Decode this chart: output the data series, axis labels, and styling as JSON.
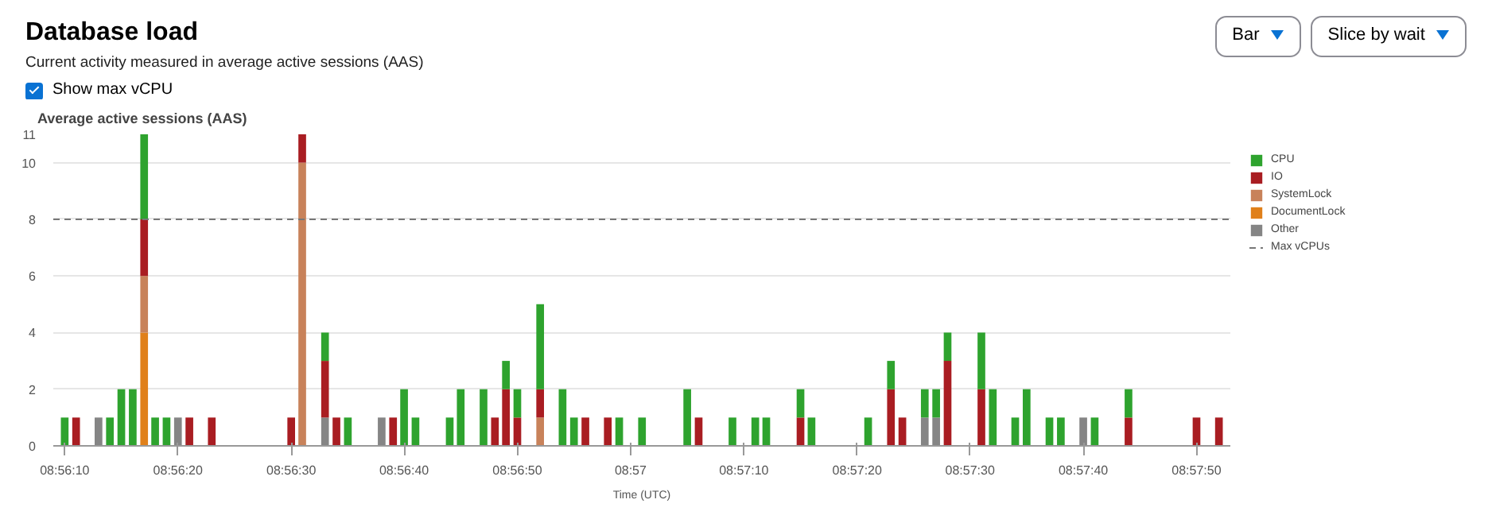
{
  "chart_data": {
    "type": "bar",
    "title": "Database load",
    "subtitle": "Current activity measured in average active sessions (AAS)",
    "annotations": [
      "Bar",
      "Slice by wait",
      "Show max vCPU"
    ],
    "ylabel": "Average active sessions (AAS)",
    "xlabel": "Time (UTC)",
    "stacked": true,
    "x": [
      8.93611,
      8.93639,
      8.93694,
      8.93722,
      8.9375,
      8.93778,
      8.93806,
      8.93833,
      8.93861,
      8.93889,
      8.93917,
      8.93972,
      8.94167,
      8.94194,
      8.9425,
      8.94278,
      8.94306,
      8.94389,
      8.94417,
      8.94444,
      8.94472,
      8.94556,
      8.94583,
      8.94639,
      8.94667,
      8.94694,
      8.94722,
      8.94778,
      8.94833,
      8.94861,
      8.94889,
      8.94944,
      8.94972,
      8.95028,
      8.95139,
      8.95167,
      8.9525,
      8.95306,
      8.95333,
      8.95417,
      8.95444,
      8.95583,
      8.95639,
      8.95667,
      8.95722,
      8.9575,
      8.95778,
      8.95861,
      8.95889,
      8.95944,
      8.95972,
      8.96028,
      8.96056,
      8.96111,
      8.96139,
      8.96222,
      8.96389,
      8.96444
    ],
    "series": [
      {
        "name": "Other",
        "color": "#858585",
        "values": [
          null,
          null,
          1,
          null,
          null,
          null,
          null,
          null,
          null,
          1,
          null,
          null,
          null,
          null,
          1,
          null,
          null,
          1,
          null,
          null,
          null,
          null,
          null,
          null,
          null,
          null,
          null,
          null,
          null,
          null,
          null,
          null,
          null,
          null,
          null,
          null,
          null,
          null,
          null,
          null,
          null,
          null,
          null,
          null,
          1,
          1,
          null,
          null,
          null,
          null,
          null,
          null,
          null,
          1,
          null,
          null,
          null,
          null
        ]
      },
      {
        "name": "DocumentLock",
        "color": "#e0801a",
        "values": [
          null,
          null,
          null,
          null,
          null,
          null,
          4,
          null,
          null,
          null,
          null,
          null,
          null,
          null,
          null,
          null,
          null,
          null,
          null,
          null,
          null,
          null,
          null,
          null,
          null,
          null,
          null,
          null,
          null,
          null,
          null,
          null,
          null,
          null,
          null,
          null,
          null,
          null,
          null,
          null,
          null,
          null,
          null,
          null,
          null,
          null,
          null,
          null,
          null,
          null,
          null,
          null,
          null,
          null,
          null,
          null,
          null,
          null
        ]
      },
      {
        "name": "SystemLock",
        "color": "#c8825a",
        "values": [
          null,
          null,
          null,
          null,
          null,
          null,
          2,
          null,
          null,
          null,
          null,
          null,
          null,
          10,
          null,
          null,
          null,
          null,
          null,
          null,
          null,
          null,
          null,
          null,
          null,
          null,
          null,
          1,
          null,
          null,
          null,
          null,
          null,
          null,
          null,
          null,
          null,
          null,
          null,
          null,
          null,
          null,
          null,
          null,
          null,
          null,
          null,
          null,
          null,
          null,
          null,
          null,
          null,
          null,
          null,
          null,
          null,
          null
        ]
      },
      {
        "name": "IO",
        "color": "#a91d22",
        "values": [
          null,
          1,
          null,
          null,
          null,
          null,
          2,
          null,
          null,
          null,
          1,
          1,
          1,
          1,
          2,
          1,
          null,
          null,
          1,
          null,
          null,
          null,
          null,
          null,
          1,
          2,
          1,
          1,
          null,
          null,
          1,
          1,
          null,
          null,
          null,
          1,
          null,
          null,
          null,
          1,
          null,
          null,
          2,
          1,
          null,
          null,
          3,
          2,
          null,
          null,
          null,
          null,
          null,
          null,
          null,
          1,
          1,
          1
        ]
      },
      {
        "name": "CPU",
        "color": "#2ea32e",
        "values": [
          1,
          null,
          null,
          1,
          2,
          2,
          3,
          1,
          1,
          null,
          null,
          null,
          null,
          null,
          1,
          null,
          1,
          null,
          null,
          2,
          1,
          1,
          2,
          2,
          null,
          1,
          1,
          3,
          2,
          1,
          null,
          null,
          1,
          1,
          2,
          null,
          1,
          1,
          1,
          1,
          1,
          1,
          1,
          null,
          1,
          1,
          1,
          2,
          2,
          1,
          2,
          1,
          1,
          null,
          1,
          1,
          null,
          null
        ]
      }
    ],
    "xlim": [
      8.93583,
      8.96472
    ],
    "xticks": [
      {
        "value": 8.93611,
        "label": "08:56:10"
      },
      {
        "value": 8.93889,
        "label": "08:56:20"
      },
      {
        "value": 8.94167,
        "label": "08:56:30"
      },
      {
        "value": 8.94444,
        "label": "08:56:40"
      },
      {
        "value": 8.94722,
        "label": "08:56:50"
      },
      {
        "value": 8.95,
        "label": "08:57"
      },
      {
        "value": 8.95278,
        "label": "08:57:10"
      },
      {
        "value": 8.95556,
        "label": "08:57:20"
      },
      {
        "value": 8.95833,
        "label": "08:57:30"
      },
      {
        "value": 8.96111,
        "label": "08:57:40"
      },
      {
        "value": 8.96389,
        "label": "08:57:50"
      }
    ],
    "ylim": [
      0,
      11
    ],
    "yticks": [
      0,
      2,
      4,
      6,
      8,
      10,
      11
    ],
    "ref_lines": [
      {
        "axis": "y",
        "value": 8,
        "label": "Max vCPUs",
        "color": "#777777",
        "line_style": "dashed"
      }
    ],
    "grid": "y",
    "legend": "right"
  }
}
